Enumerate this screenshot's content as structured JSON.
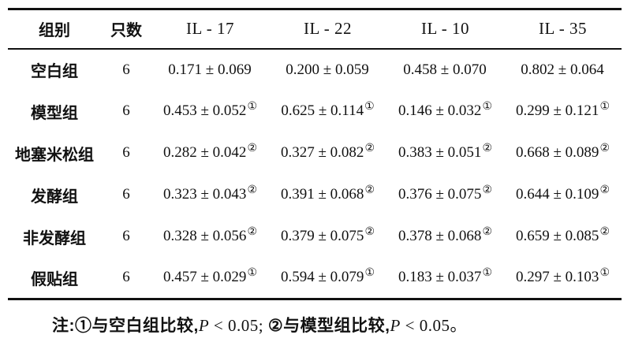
{
  "table": {
    "columns": [
      "组别",
      "只数",
      "IL - 17",
      "IL - 22",
      "IL - 10",
      "IL - 35"
    ],
    "rows": [
      {
        "group": "空白组",
        "n": "6",
        "values": [
          {
            "v": "0.171 ± 0.069",
            "sup": ""
          },
          {
            "v": "0.200 ± 0.059",
            "sup": ""
          },
          {
            "v": "0.458 ± 0.070",
            "sup": ""
          },
          {
            "v": "0.802 ± 0.064",
            "sup": ""
          }
        ]
      },
      {
        "group": "模型组",
        "n": "6",
        "values": [
          {
            "v": "0.453 ± 0.052",
            "sup": "①"
          },
          {
            "v": "0.625 ± 0.114",
            "sup": "①"
          },
          {
            "v": "0.146 ± 0.032",
            "sup": "①"
          },
          {
            "v": "0.299 ± 0.121",
            "sup": "①"
          }
        ]
      },
      {
        "group": "地塞米松组",
        "n": "6",
        "values": [
          {
            "v": "0.282 ± 0.042",
            "sup": "②"
          },
          {
            "v": "0.327 ± 0.082",
            "sup": "②"
          },
          {
            "v": "0.383 ± 0.051",
            "sup": "②"
          },
          {
            "v": "0.668 ± 0.089",
            "sup": "②"
          }
        ]
      },
      {
        "group": "发酵组",
        "n": "6",
        "values": [
          {
            "v": "0.323 ± 0.043",
            "sup": "②"
          },
          {
            "v": "0.391 ± 0.068",
            "sup": "②"
          },
          {
            "v": "0.376 ± 0.075",
            "sup": "②"
          },
          {
            "v": "0.644 ± 0.109",
            "sup": "②"
          }
        ]
      },
      {
        "group": "非发酵组",
        "n": "6",
        "values": [
          {
            "v": "0.328 ± 0.056",
            "sup": "②"
          },
          {
            "v": "0.379 ± 0.075",
            "sup": "②"
          },
          {
            "v": "0.378 ± 0.068",
            "sup": "②"
          },
          {
            "v": "0.659 ± 0.085",
            "sup": "②"
          }
        ]
      },
      {
        "group": "假贴组",
        "n": "6",
        "values": [
          {
            "v": "0.457 ± 0.029",
            "sup": "①"
          },
          {
            "v": "0.594 ± 0.079",
            "sup": "①"
          },
          {
            "v": "0.183 ± 0.037",
            "sup": "①"
          },
          {
            "v": "0.297 ± 0.103",
            "sup": "①"
          }
        ]
      }
    ]
  },
  "note": {
    "label": "注:",
    "part1": "①与空白组比较,",
    "p1": "P",
    "cmp1": " < 0.05; ",
    "part2": "②与模型组比较,",
    "p2": "P",
    "cmp2": " < 0.05。"
  },
  "colors": {
    "text": "#111111",
    "rule_line": "#111111",
    "background": "#ffffff"
  }
}
